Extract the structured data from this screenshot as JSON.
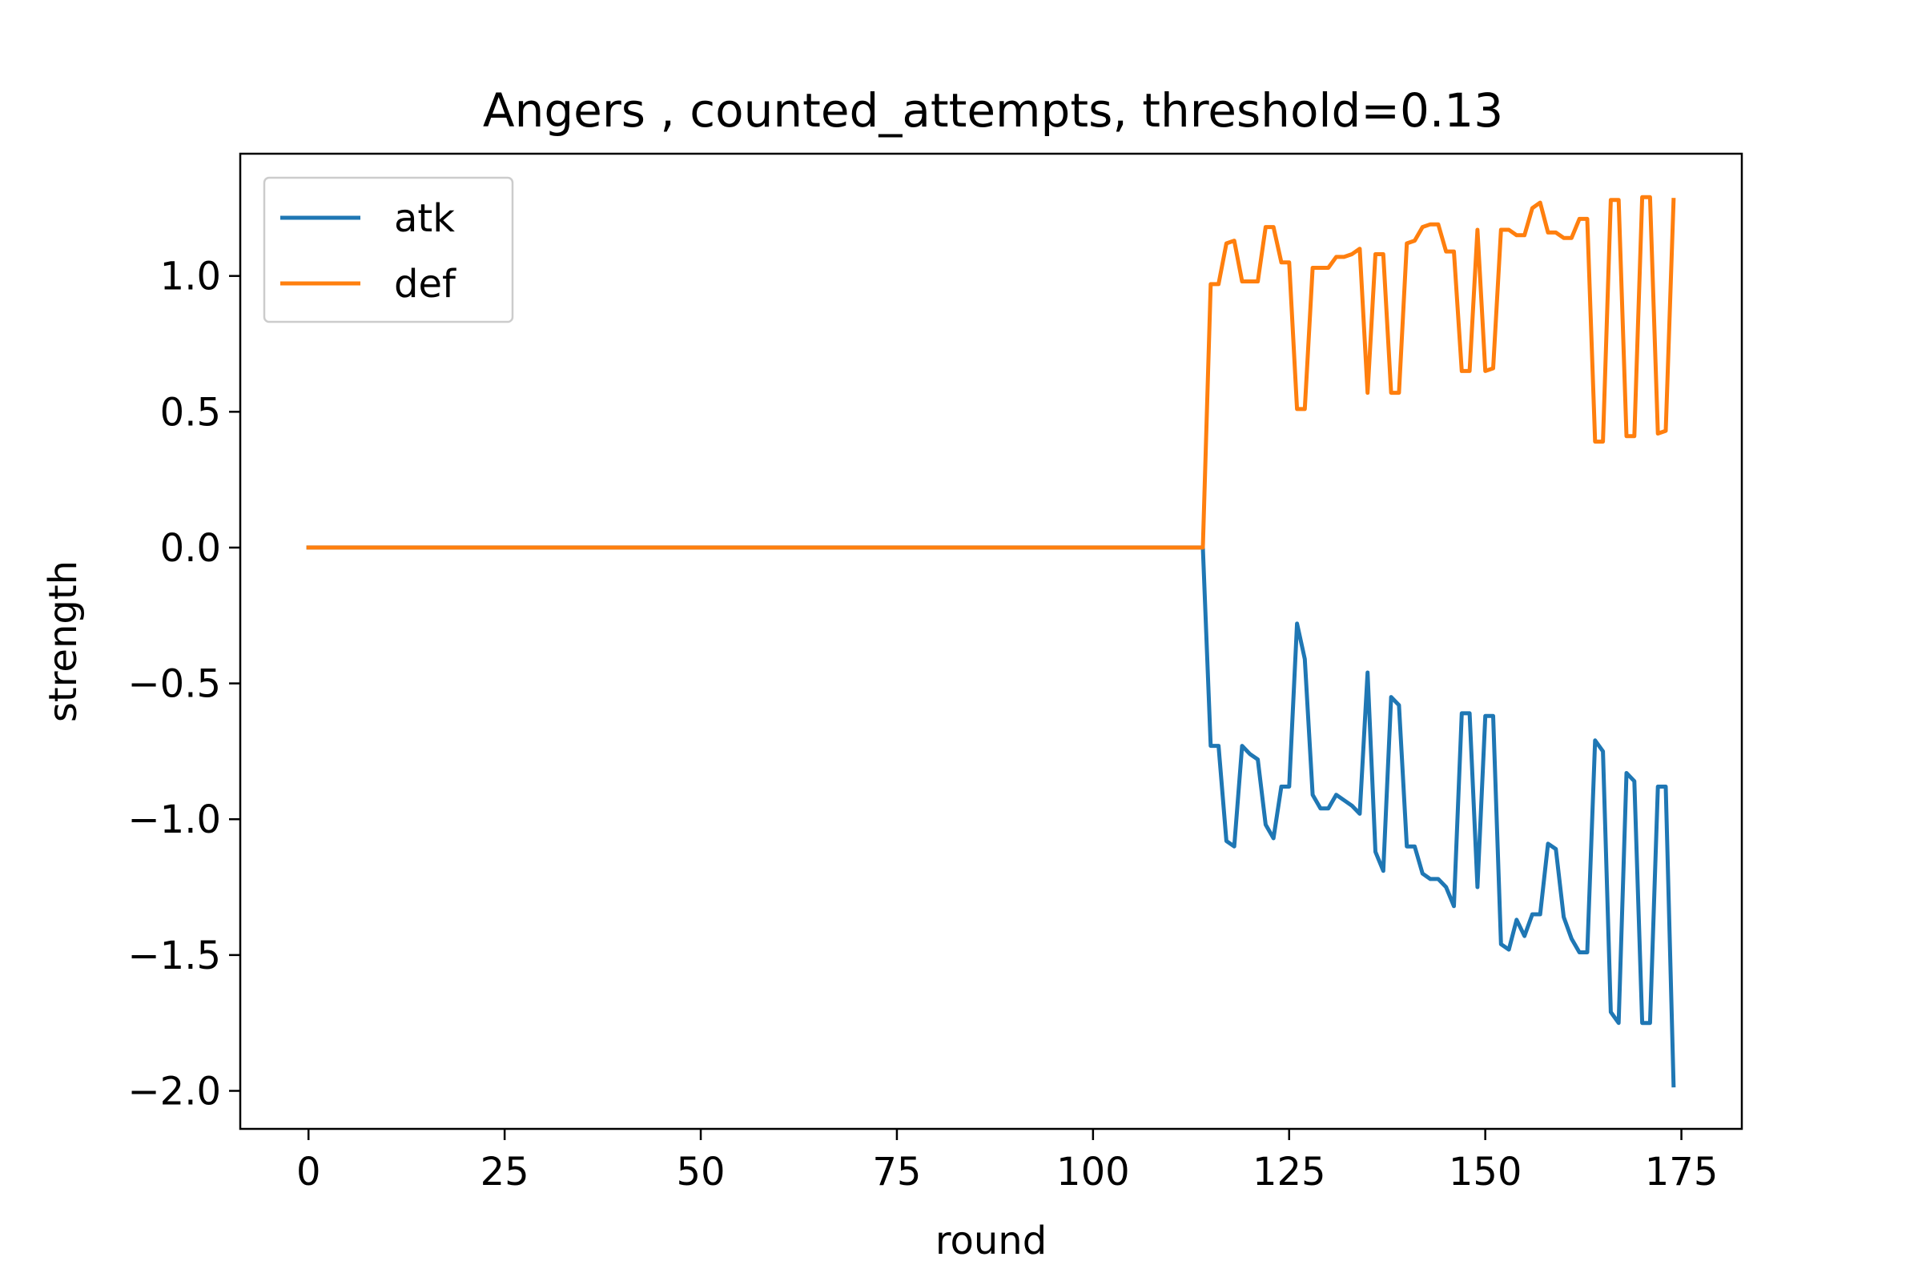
{
  "chart_data": {
    "type": "line",
    "title": "Angers , counted_attempts, threshold=0.13",
    "xlabel": "round",
    "ylabel": "strength",
    "xlim": [
      -8.7,
      182.7
    ],
    "ylim": [
      -2.14,
      1.45
    ],
    "xticks": [
      0,
      25,
      50,
      75,
      100,
      125,
      150,
      175
    ],
    "yticks": [
      1.0,
      0.5,
      0.0,
      -0.5,
      -1.0,
      -1.5,
      -2.0
    ],
    "xtick_labels": [
      "0",
      "25",
      "50",
      "75",
      "100",
      "125",
      "150",
      "175"
    ],
    "ytick_labels": [
      "1.0",
      "0.5",
      "0.0",
      "−0.5",
      "−1.0",
      "−1.5",
      "−2.0"
    ],
    "grid": false,
    "legend_position": "upper-left",
    "series": [
      {
        "name": "atk",
        "color": "#1f77b4",
        "points": [
          [
            0,
            0
          ],
          [
            114,
            0
          ],
          [
            115,
            -0.73
          ],
          [
            116,
            -0.73
          ],
          [
            117,
            -1.08
          ],
          [
            118,
            -1.1
          ],
          [
            119,
            -0.73
          ],
          [
            120,
            -0.76
          ],
          [
            121,
            -0.78
          ],
          [
            122,
            -1.02
          ],
          [
            123,
            -1.07
          ],
          [
            124,
            -0.88
          ],
          [
            125,
            -0.88
          ],
          [
            126,
            -0.28
          ],
          [
            127,
            -0.41
          ],
          [
            128,
            -0.91
          ],
          [
            129,
            -0.96
          ],
          [
            130,
            -0.96
          ],
          [
            131,
            -0.91
          ],
          [
            132,
            -0.93
          ],
          [
            133,
            -0.95
          ],
          [
            134,
            -0.98
          ],
          [
            135,
            -0.46
          ],
          [
            136,
            -1.12
          ],
          [
            137,
            -1.19
          ],
          [
            138,
            -0.55
          ],
          [
            139,
            -0.58
          ],
          [
            140,
            -1.1
          ],
          [
            141,
            -1.1
          ],
          [
            142,
            -1.2
          ],
          [
            143,
            -1.22
          ],
          [
            144,
            -1.22
          ],
          [
            145,
            -1.25
          ],
          [
            146,
            -1.32
          ],
          [
            147,
            -0.61
          ],
          [
            148,
            -0.61
          ],
          [
            149,
            -1.25
          ],
          [
            150,
            -0.62
          ],
          [
            151,
            -0.62
          ],
          [
            152,
            -1.46
          ],
          [
            153,
            -1.48
          ],
          [
            154,
            -1.37
          ],
          [
            155,
            -1.43
          ],
          [
            156,
            -1.35
          ],
          [
            157,
            -1.35
          ],
          [
            158,
            -1.09
          ],
          [
            159,
            -1.11
          ],
          [
            160,
            -1.36
          ],
          [
            161,
            -1.44
          ],
          [
            162,
            -1.49
          ],
          [
            163,
            -1.49
          ],
          [
            164,
            -0.71
          ],
          [
            165,
            -0.75
          ],
          [
            166,
            -1.71
          ],
          [
            167,
            -1.75
          ],
          [
            168,
            -0.83
          ],
          [
            169,
            -0.86
          ],
          [
            170,
            -1.75
          ],
          [
            171,
            -1.75
          ],
          [
            172,
            -0.88
          ],
          [
            173,
            -0.88
          ],
          [
            174,
            -1.98
          ]
        ]
      },
      {
        "name": "def",
        "color": "#ff7f0e",
        "points": [
          [
            0,
            0
          ],
          [
            114,
            0
          ],
          [
            115,
            0.97
          ],
          [
            116,
            0.97
          ],
          [
            117,
            1.12
          ],
          [
            118,
            1.13
          ],
          [
            119,
            0.98
          ],
          [
            120,
            0.98
          ],
          [
            121,
            0.98
          ],
          [
            122,
            1.18
          ],
          [
            123,
            1.18
          ],
          [
            124,
            1.05
          ],
          [
            125,
            1.05
          ],
          [
            126,
            0.51
          ],
          [
            127,
            0.51
          ],
          [
            128,
            1.03
          ],
          [
            129,
            1.03
          ],
          [
            130,
            1.03
          ],
          [
            131,
            1.07
          ],
          [
            132,
            1.07
          ],
          [
            133,
            1.08
          ],
          [
            134,
            1.1
          ],
          [
            135,
            0.57
          ],
          [
            136,
            1.08
          ],
          [
            137,
            1.08
          ],
          [
            138,
            0.57
          ],
          [
            139,
            0.57
          ],
          [
            140,
            1.12
          ],
          [
            141,
            1.13
          ],
          [
            142,
            1.18
          ],
          [
            143,
            1.19
          ],
          [
            144,
            1.19
          ],
          [
            145,
            1.09
          ],
          [
            146,
            1.09
          ],
          [
            147,
            0.65
          ],
          [
            148,
            0.65
          ],
          [
            149,
            1.17
          ],
          [
            150,
            0.65
          ],
          [
            151,
            0.66
          ],
          [
            152,
            1.17
          ],
          [
            153,
            1.17
          ],
          [
            154,
            1.15
          ],
          [
            155,
            1.15
          ],
          [
            156,
            1.25
          ],
          [
            157,
            1.27
          ],
          [
            158,
            1.16
          ],
          [
            159,
            1.16
          ],
          [
            160,
            1.14
          ],
          [
            161,
            1.14
          ],
          [
            162,
            1.21
          ],
          [
            163,
            1.21
          ],
          [
            164,
            0.39
          ],
          [
            165,
            0.39
          ],
          [
            166,
            1.28
          ],
          [
            167,
            1.28
          ],
          [
            168,
            0.41
          ],
          [
            169,
            0.41
          ],
          [
            170,
            1.29
          ],
          [
            171,
            1.29
          ],
          [
            172,
            0.42
          ],
          [
            173,
            0.43
          ],
          [
            174,
            1.28
          ]
        ]
      }
    ]
  }
}
